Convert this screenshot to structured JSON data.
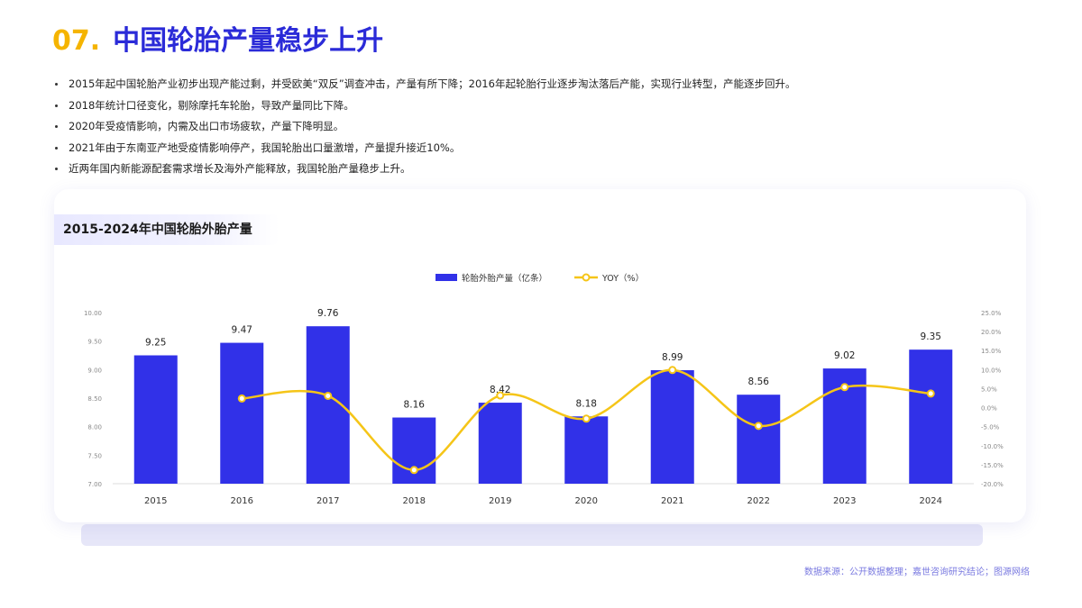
{
  "header": {
    "number": "07.",
    "title": "中国轮胎产量稳步上升"
  },
  "bullets": [
    "2015年起中国轮胎产业初步出现产能过剩，并受欧美“双反”调查冲击，产量有所下降；2016年起轮胎行业逐步淘汰落后产能，实现行业转型，产能逐步回升。",
    "2018年统计口径变化，剔除摩托车轮胎，导致产量同比下降。",
    "2020年受疫情影响，内需及出口市场疲软，产量下降明显。",
    "2021年由于东南亚产地受疫情影响停产，我国轮胎出口量激增，产量提升接近10%。",
    "近两年国内新能源配套需求增长及海外产能释放，我国轮胎产量稳步上升。"
  ],
  "source": "数据来源：公开数据整理；嘉世咨询研究结论；图源网络",
  "colors": {
    "bar": "#3131e8",
    "line": "#f5c518",
    "title_accent": "#f5b400",
    "title_main": "#2b2bd8"
  },
  "chart_data": {
    "type": "bar",
    "title": "2015-2024年中国轮胎外胎产量",
    "categories": [
      "2015",
      "2016",
      "2017",
      "2018",
      "2019",
      "2020",
      "2021",
      "2022",
      "2023",
      "2024"
    ],
    "series": [
      {
        "name": "轮胎外胎产量（亿条）",
        "type": "bar",
        "axis": "left",
        "values": [
          9.25,
          9.47,
          9.76,
          8.16,
          8.42,
          8.18,
          8.99,
          8.56,
          9.02,
          9.35
        ],
        "value_labels": [
          "9.25",
          "9.47",
          "9.76",
          "8.16",
          "8.42",
          "8.18",
          "8.99",
          "8.56",
          "9.02",
          "9.35"
        ]
      },
      {
        "name": "YOY（%）",
        "type": "line",
        "axis": "right",
        "smooth": true,
        "values": [
          null,
          2.4,
          3.1,
          -16.4,
          3.2,
          -2.9,
          9.9,
          -4.8,
          5.4,
          3.7
        ]
      }
    ],
    "ylim_left": [
      7.0,
      10.0
    ],
    "yticks_left": [
      "7.00",
      "7.50",
      "8.00",
      "8.50",
      "9.00",
      "9.50",
      "10.00"
    ],
    "ylim_right": [
      -20,
      25
    ],
    "yticks_right": [
      "-20.0%",
      "-15.0%",
      "-10.0%",
      "-5.0%",
      "0.0%",
      "5.0%",
      "10.0%",
      "15.0%",
      "20.0%",
      "25.0%"
    ],
    "legend_position": "top-center",
    "grid": false
  }
}
